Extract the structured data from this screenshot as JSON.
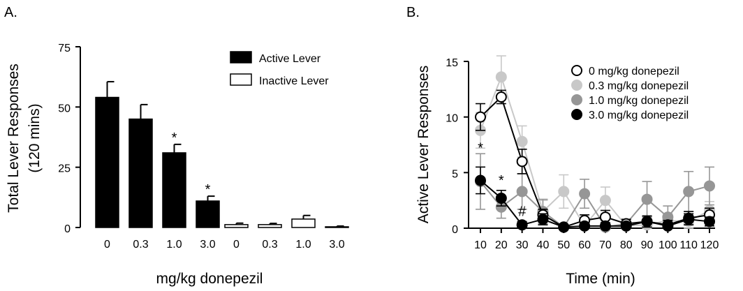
{
  "chart_data": [
    {
      "panel_label": "A.",
      "type": "bar",
      "title": "",
      "ylabel_line1": "Total Lever Responses",
      "ylabel_line2": "(120 mins)",
      "xlabel": "mg/kg donepezil",
      "ylim": [
        0,
        75
      ],
      "yticks": [
        "0",
        "25",
        "50",
        "75"
      ],
      "categories": [
        "0",
        "0.3",
        "1.0",
        "3.0"
      ],
      "legend_position": "top-right",
      "series": [
        {
          "name": "Active Lever",
          "color": "#000000",
          "values": [
            54,
            45,
            31,
            11
          ],
          "errors": [
            6.5,
            6,
            3.5,
            2
          ],
          "significance": [
            "",
            "",
            "*",
            "*"
          ]
        },
        {
          "name": "Inactive Lever",
          "color": "#ffffff",
          "values": [
            1.2,
            1.2,
            3.5,
            0.3
          ],
          "errors": [
            0.6,
            0.5,
            1.5,
            0.3
          ],
          "significance": [
            "",
            "",
            "",
            ""
          ]
        }
      ]
    },
    {
      "panel_label": "B.",
      "type": "line",
      "title": "",
      "ylabel": "Active Lever Responses",
      "xlabel": "Time (min)",
      "ylim": [
        0,
        15
      ],
      "yticks": [
        "0",
        "5",
        "10",
        "15"
      ],
      "x": [
        10,
        20,
        30,
        40,
        50,
        60,
        70,
        80,
        90,
        100,
        110,
        120
      ],
      "xticks": [
        "10",
        "20",
        "30",
        "40",
        "50",
        "60",
        "70",
        "80",
        "90",
        "100",
        "110",
        "120"
      ],
      "legend_position": "top-right",
      "series": [
        {
          "name": "0 mg/kg donepezil",
          "color": "#000000",
          "fill": "#ffffff",
          "values": [
            10,
            11.8,
            6,
            1.2,
            0.1,
            0.7,
            1,
            0.4,
            0.6,
            0.3,
            0.9,
            1.2
          ],
          "errors": [
            1.2,
            0.6,
            1.1,
            0.5,
            0.2,
            0.5,
            0.6,
            0.4,
            0.5,
            0.4,
            0.6,
            0.6
          ]
        },
        {
          "name": "0.3 mg/kg donepezil",
          "color": "#c8c8c8",
          "fill": "#c8c8c8",
          "values": [
            8.8,
            13.6,
            7.8,
            1.5,
            3.3,
            0.2,
            2.5,
            0.2,
            0.3,
            0.7,
            0.6,
            1.6
          ],
          "errors": [
            1.6,
            1.9,
            1.4,
            1,
            1.5,
            0.4,
            1.2,
            0.5,
            0.5,
            0.6,
            0.6,
            0.8
          ]
        },
        {
          "name": "1.0 mg/kg donepezil",
          "color": "#969696",
          "fill": "#969696",
          "values": [
            4.2,
            1.9,
            3.3,
            1.5,
            0.1,
            3.1,
            0.1,
            0.4,
            2.6,
            1,
            3.3,
            3.8
          ],
          "errors": [
            2.5,
            1,
            1.6,
            1.1,
            0.2,
            1.3,
            0.3,
            0.4,
            1.6,
            1,
            1.8,
            1.7
          ]
        },
        {
          "name": "3.0 mg/kg donepezil",
          "color": "#000000",
          "fill": "#000000",
          "values": [
            4.3,
            2.7,
            0.3,
            0.8,
            0.1,
            0.2,
            0.2,
            0.2,
            0.6,
            0.2,
            0.8,
            0.6
          ],
          "errors": [
            1.2,
            0.7,
            0.3,
            0.5,
            0.2,
            0.3,
            0.3,
            0.3,
            0.5,
            0.3,
            0.5,
            0.4
          ]
        }
      ],
      "annotations": [
        {
          "text": "*",
          "x": 10,
          "y": 6.8
        },
        {
          "text": "*",
          "x": 20,
          "y": 3.9
        },
        {
          "text": "#",
          "x": 30,
          "y": 1.1
        }
      ]
    }
  ]
}
